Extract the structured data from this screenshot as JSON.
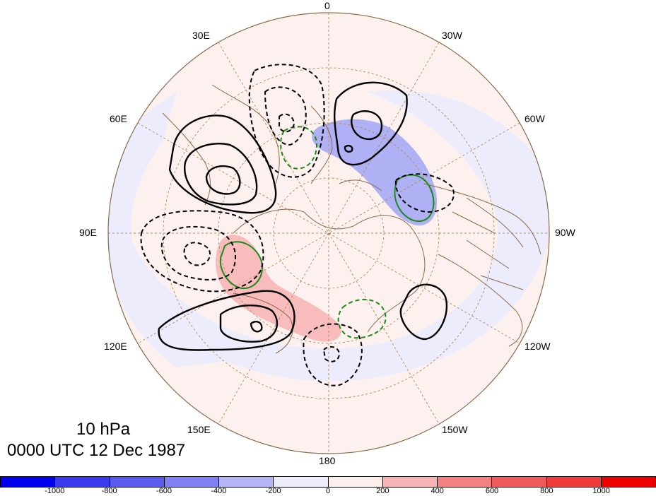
{
  "title": {
    "level": "10 hPa",
    "time": "0000 UTC 12 Dec 1987"
  },
  "longitude_labels": {
    "lon_0": "0",
    "lon_30e": "30E",
    "lon_30w": "30W",
    "lon_60e": "60E",
    "lon_60w": "60W",
    "lon_90e": "90E",
    "lon_90w": "90W",
    "lon_120e": "120E",
    "lon_120w": "120W",
    "lon_150e": "150E",
    "lon_150w": "150W",
    "lon_180": "180"
  },
  "colorbar": {
    "ticks": [
      "-1000",
      "-800",
      "-600",
      "-400",
      "-200",
      "0",
      "200",
      "400",
      "600",
      "800",
      "1000"
    ],
    "colors": [
      "#0000ee",
      "#3a3aee",
      "#5a5aee",
      "#8080f2",
      "#b4b4f6",
      "#ececfc",
      "#fdeeee",
      "#f8b4b4",
      "#f48080",
      "#f05a5a",
      "#ee3a3a",
      "#ee0000"
    ]
  },
  "colors": {
    "coastline": "#8b6a4a",
    "graticule": "#b08a5a",
    "positive_contour": "#000000",
    "negative_contour": "#000000",
    "green_contour": "#1a8a1a"
  }
}
